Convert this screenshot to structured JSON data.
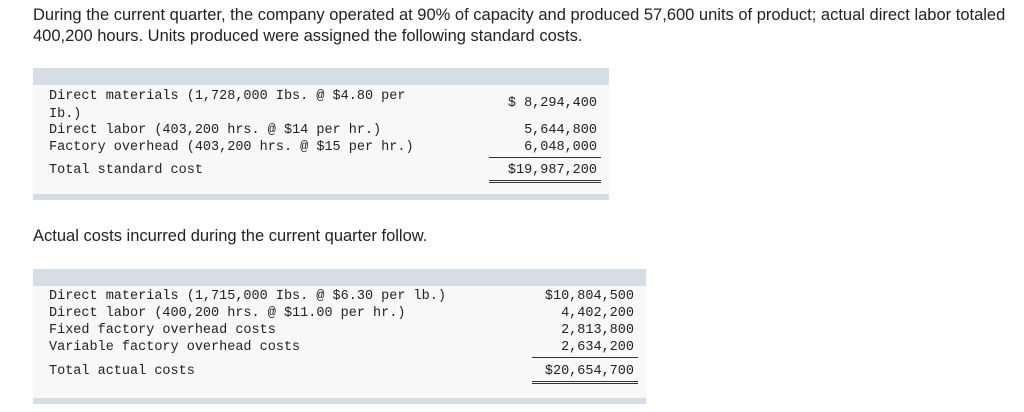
{
  "intro": "During the current quarter, the company operated at 90% of capacity and produced 57,600 units of product; actual direct labor totaled 400,200 hours. Units produced were assigned the following standard costs.",
  "standard_costs": {
    "rows": [
      {
        "label": "Direct materials (1,728,000 Ibs. @ $4.80 per\nIb.)",
        "amount": "$ 8,294,400"
      },
      {
        "label": "Direct labor (403,200 hrs. @ $14 per hr.)",
        "amount": "5,644,800"
      },
      {
        "label": "Factory overhead (403,200 hrs. @ $15 per hr.)",
        "amount": "6,048,000"
      }
    ],
    "total_label": "Total standard cost",
    "total_amount": "$19,987,200"
  },
  "actual_intro": "Actual costs incurred during the current quarter follow.",
  "actual_costs": {
    "rows": [
      {
        "label": "Direct materials (1,715,000 Ibs. @ $6.30 per lb.)",
        "amount": "$10,804,500"
      },
      {
        "label": "Direct labor (400,200 hrs. @ $11.00 per hr.)",
        "amount": "4,402,200"
      },
      {
        "label": "Fixed factory overhead costs",
        "amount": "2,813,800"
      },
      {
        "label": "Variable factory overhead costs",
        "amount": "2,634,200"
      }
    ],
    "total_label": "Total actual costs",
    "total_amount": "$20,654,700"
  }
}
